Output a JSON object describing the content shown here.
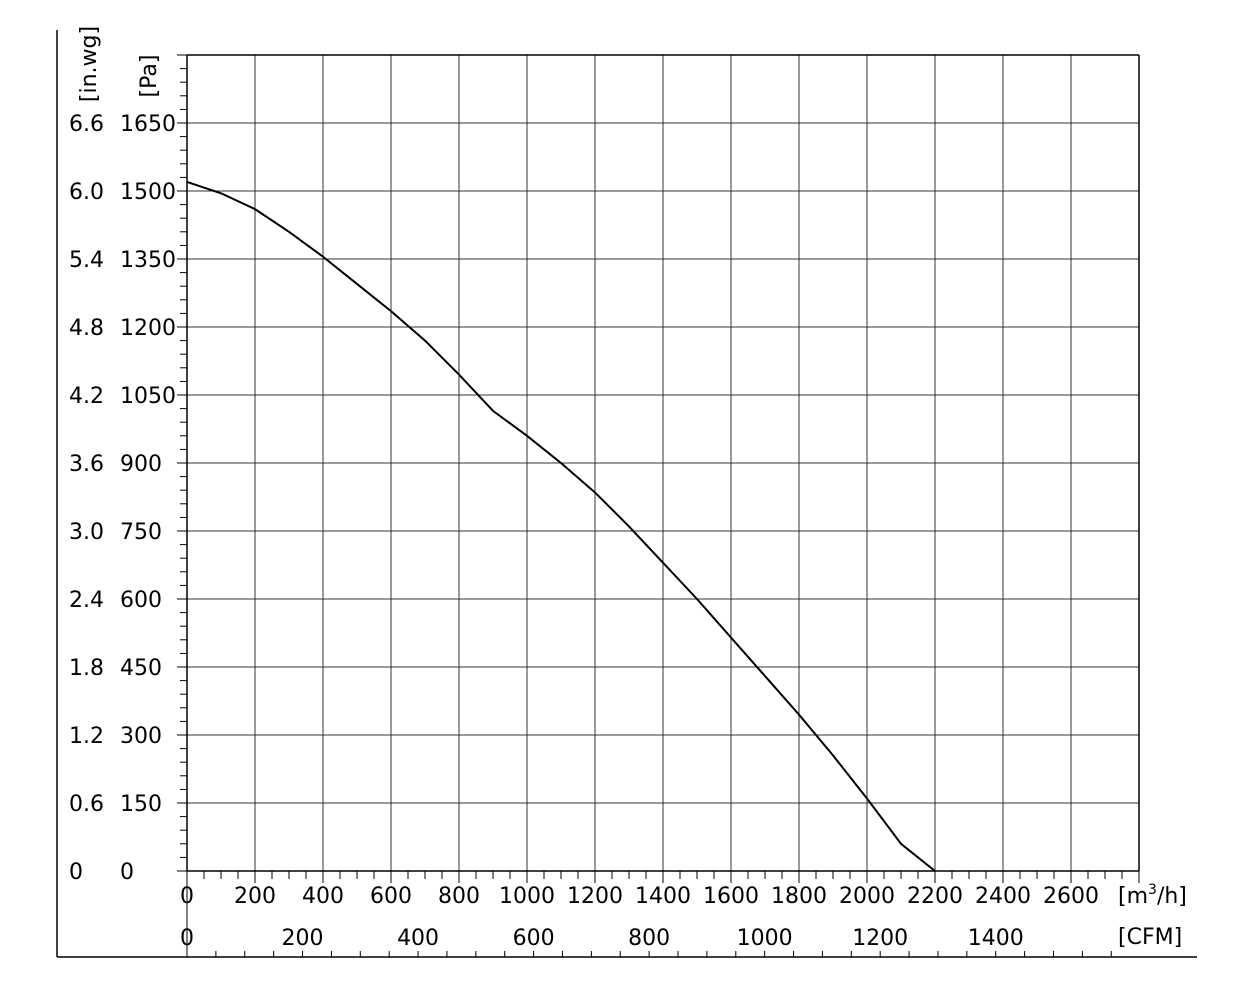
{
  "chart_data": {
    "type": "line",
    "title": "",
    "xlabel": "",
    "ylabel": "",
    "x_unit_primary": "[m³/h]",
    "x_unit_secondary": "[CFM]",
    "y_unit_primary": "[Pa]",
    "y_unit_secondary": "[in.wg]",
    "xlim": [
      0,
      2800
    ],
    "ylim": [
      0,
      1800
    ],
    "grid": true,
    "x_ticks": [
      "0",
      "200",
      "400",
      "600",
      "800",
      "1000",
      "1200",
      "1400",
      "1600",
      "1800",
      "2000",
      "2200",
      "2400",
      "2600"
    ],
    "cfm_ticks": [
      "0",
      "200",
      "400",
      "600",
      "800",
      "1000",
      "1200",
      "1400"
    ],
    "y_ticks_pa": [
      "0",
      "150",
      "300",
      "450",
      "600",
      "750",
      "900",
      "1050",
      "1200",
      "1350",
      "1500",
      "1650"
    ],
    "y_ticks_inwg": [
      "0",
      "0.6",
      "1.2",
      "1.8",
      "2.4",
      "3.0",
      "3.6",
      "4.2",
      "4.8",
      "5.4",
      "6.0",
      "6.6"
    ],
    "series": [
      {
        "x": [
          0,
          100,
          200,
          300,
          400,
          500,
          600,
          700,
          800,
          900,
          1000,
          1100,
          1200,
          1300,
          1400,
          1500,
          1600,
          1700,
          1800,
          1900,
          2000,
          2100,
          2200
        ],
        "y": [
          1520,
          1495,
          1460,
          1410,
          1355,
          1295,
          1235,
          1170,
          1095,
          1015,
          960,
          900,
          835,
          760,
          680,
          600,
          515,
          430,
          345,
          255,
          160,
          60,
          0
        ]
      }
    ]
  }
}
